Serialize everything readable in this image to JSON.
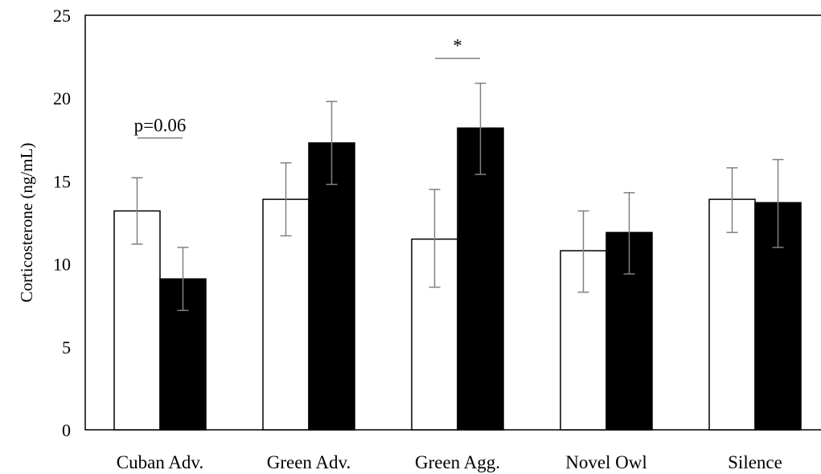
{
  "chart_data": {
    "type": "bar",
    "ylabel": "Corticosterone  (ng/mL)",
    "ylim": [
      0,
      25
    ],
    "yticks": [
      "0",
      "5",
      "10",
      "15",
      "20",
      "25"
    ],
    "categories": [
      "Cuban Adv.",
      "Green Adv.",
      "Green Agg.",
      "Novel Owl",
      "Silence"
    ],
    "series": [
      {
        "fill": "#ffffff",
        "values": [
          13.2,
          13.9,
          11.5,
          10.8,
          13.9
        ],
        "err_low": [
          11.2,
          11.7,
          8.6,
          8.3,
          11.9
        ],
        "err_high": [
          15.2,
          16.1,
          14.5,
          13.2,
          15.8
        ]
      },
      {
        "fill": "#000000",
        "values": [
          9.1,
          17.3,
          18.2,
          11.9,
          13.7
        ],
        "err_low": [
          7.2,
          14.8,
          15.4,
          9.4,
          11.0
        ],
        "err_high": [
          11.0,
          19.8,
          20.9,
          14.3,
          16.3
        ]
      }
    ],
    "annotations": [
      {
        "text": "p=0.06",
        "category_index": 0,
        "y": 17.6
      },
      {
        "text": "*",
        "category_index": 2,
        "y": 22.4
      }
    ],
    "grid": false,
    "legend": "none"
  },
  "colors": {
    "axis": "#000000",
    "error_bar": "#808080",
    "bar_outline": "#000000"
  }
}
